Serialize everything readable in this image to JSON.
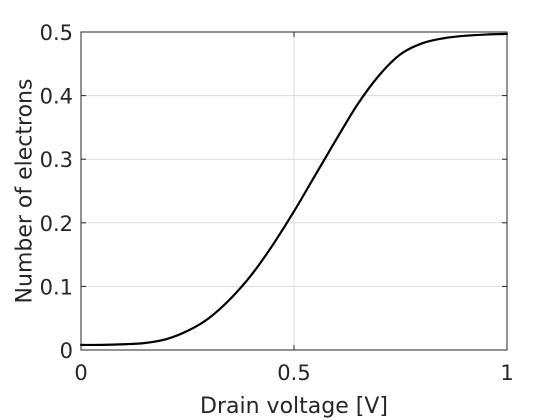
{
  "chart_data": {
    "type": "line",
    "title": "",
    "xlabel": "Drain voltage [V]",
    "ylabel": "Number of electrons",
    "xlim": [
      0,
      1
    ],
    "ylim": [
      0,
      0.5
    ],
    "xticks": [
      0,
      0.5,
      1
    ],
    "xtick_labels": [
      "0",
      "0.5",
      "1"
    ],
    "yticks": [
      0,
      0.1,
      0.2,
      0.3,
      0.4,
      0.5
    ],
    "ytick_labels": [
      "0",
      "0.1",
      "0.2",
      "0.3",
      "0.4",
      "0.5"
    ],
    "grid": true,
    "series": [
      {
        "color": "#000000",
        "x": [
          0,
          0.05,
          0.1,
          0.15,
          0.2,
          0.25,
          0.3,
          0.35,
          0.4,
          0.45,
          0.5,
          0.55,
          0.6,
          0.65,
          0.7,
          0.75,
          0.8,
          0.85,
          0.9,
          0.95,
          1.0
        ],
        "y": [
          0.008,
          0.008,
          0.009,
          0.011,
          0.017,
          0.03,
          0.05,
          0.08,
          0.118,
          0.165,
          0.218,
          0.275,
          0.332,
          0.387,
          0.432,
          0.465,
          0.482,
          0.49,
          0.494,
          0.496,
          0.497
        ]
      }
    ]
  }
}
